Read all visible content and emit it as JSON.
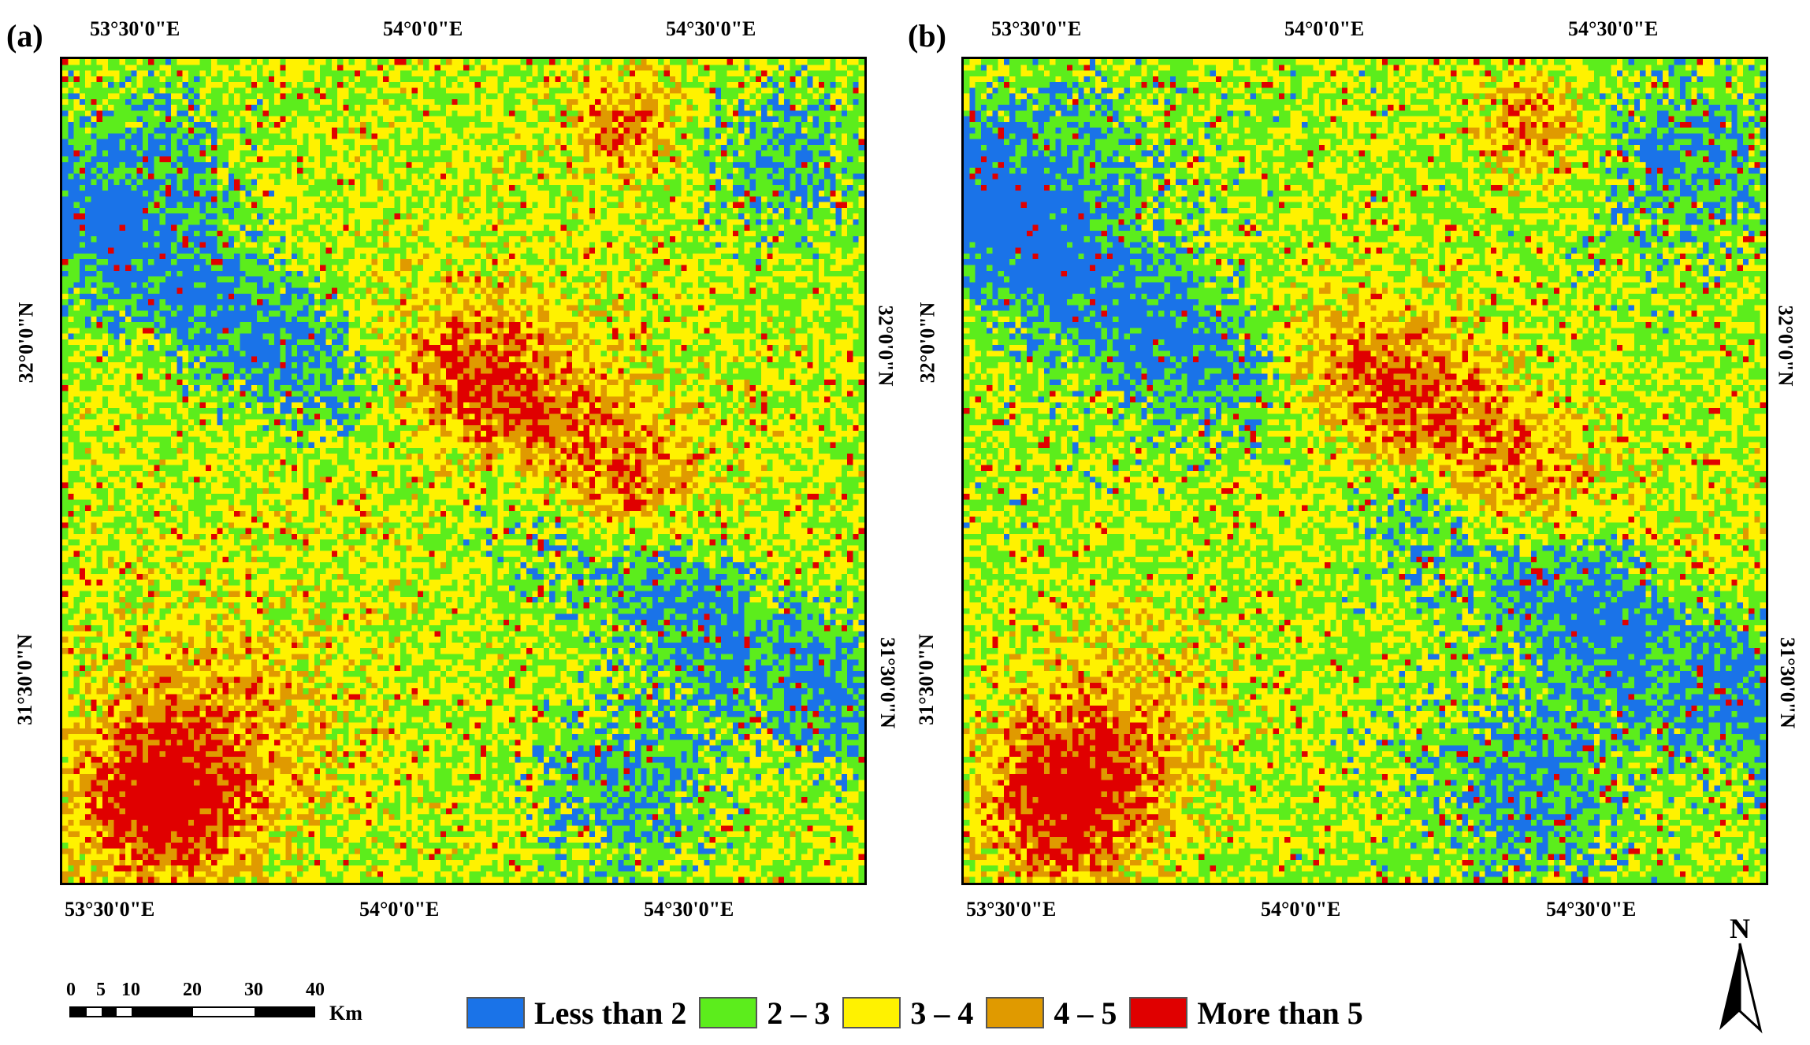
{
  "panels": [
    {
      "letter": "(a)",
      "top_lon_labels": [
        "53°30'0\"E",
        "54°0'0\"E",
        "54°30'0\"E"
      ],
      "bottom_lon_labels": [
        "53°30'0\"E",
        "54°0'0\"E",
        "54°30'0\"E"
      ],
      "left_lat_labels": [
        "32°0'0\"N",
        "31°30'0\"N"
      ],
      "right_lat_labels": [
        "32°0'0\"N",
        "31°30'0\"N"
      ]
    },
    {
      "letter": "(b)",
      "top_lon_labels": [
        "53°30'0\"E",
        "54°0'0\"E",
        "54°30'0\"E"
      ],
      "bottom_lon_labels": [
        "53°30'0\"E",
        "54°0'0\"E",
        "54°30'0\"E"
      ],
      "left_lat_labels": [
        "32°0'0\"N",
        "31°30'0\"N"
      ],
      "right_lat_labels": [
        "32°0'0\"N",
        "31°30'0\"N"
      ]
    }
  ],
  "legend": [
    {
      "label": "Less than 2",
      "color": "#1a73e8"
    },
    {
      "label": "2 – 3",
      "color": "#5ced1c"
    },
    {
      "label": "3 – 4",
      "color": "#fff200"
    },
    {
      "label": "4 – 5",
      "color": "#e09a00"
    },
    {
      "label": "More than 5",
      "color": "#e00000"
    }
  ],
  "scale_bar": {
    "ticks": [
      "0",
      "5",
      "10",
      "20",
      "30",
      "40"
    ],
    "unit": "Km"
  },
  "north_arrow": {
    "letter": "N"
  }
}
